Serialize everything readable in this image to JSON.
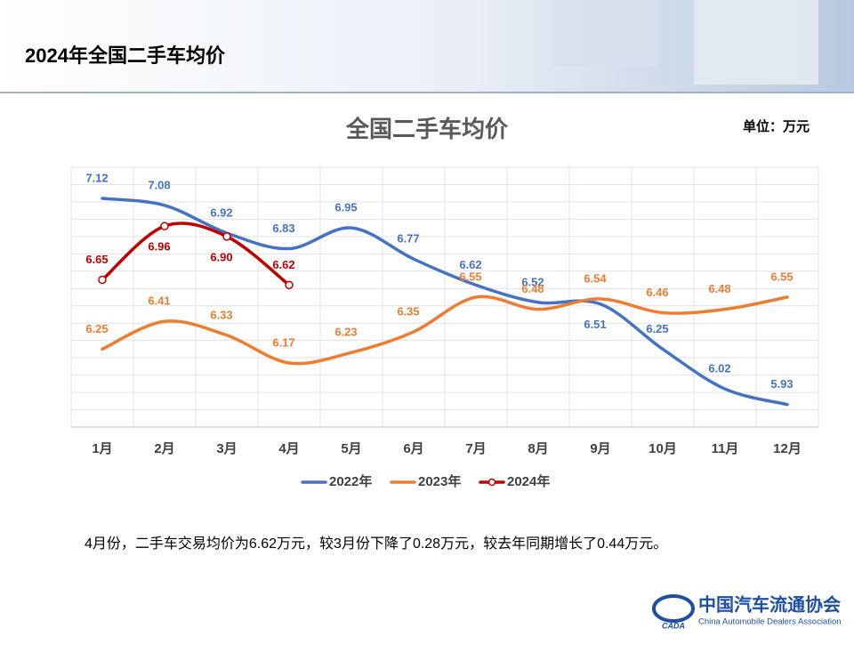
{
  "header": {
    "title": "2024年全国二手车均价"
  },
  "chart_data": {
    "type": "line",
    "title": "全国二手车均价",
    "unit": "单位：万元",
    "categories": [
      "1月",
      "2月",
      "3月",
      "4月",
      "5月",
      "6月",
      "7月",
      "8月",
      "9月",
      "10月",
      "11月",
      "12月"
    ],
    "series": [
      {
        "name": "2022年",
        "color": "#4472c4",
        "values": [
          7.12,
          7.08,
          6.92,
          6.83,
          6.95,
          6.77,
          6.62,
          6.52,
          6.51,
          6.25,
          6.02,
          5.93
        ]
      },
      {
        "name": "2023年",
        "color": "#ed7d31",
        "values": [
          6.25,
          6.41,
          6.33,
          6.17,
          6.23,
          6.35,
          6.55,
          6.48,
          6.54,
          6.46,
          6.48,
          6.55
        ]
      },
      {
        "name": "2024年",
        "color": "#c00000",
        "values": [
          6.65,
          6.96,
          6.9,
          6.62,
          null,
          null,
          null,
          null,
          null,
          null,
          null,
          null
        ],
        "value_labels": [
          "6.65",
          "6.96",
          "6.90",
          "6.62",
          null,
          null,
          null,
          null,
          null,
          null,
          null,
          null
        ]
      }
    ],
    "ylim": [
      5.8,
      7.3
    ],
    "yticks": [
      5.8,
      5.9,
      6,
      6.1,
      6.2,
      6.3,
      6.4,
      6.5,
      6.6,
      6.7,
      6.8,
      6.9,
      7,
      7.1,
      7.2,
      7.3
    ],
    "grid": true,
    "legend": "bottom"
  },
  "note": "4月份，二手车交易均价为6.62万元，较3月份下降了0.28万元，较去年同期增长了0.44万元。",
  "logo": {
    "name": "中国汽车流通协会",
    "english": "China Automobile Dealers Association",
    "mark": "CADA"
  }
}
